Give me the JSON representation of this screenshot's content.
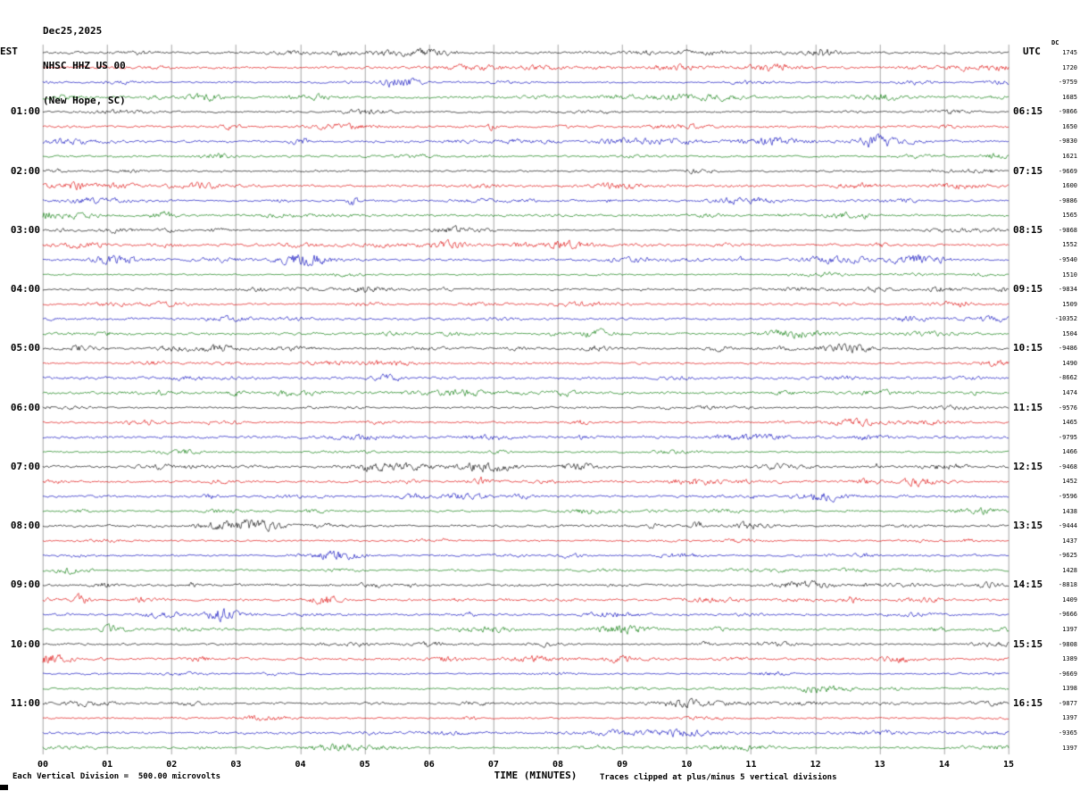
{
  "header": {
    "date": "Dec25,2025",
    "station": "NHSC HHZ US 00",
    "location": "(New Hope, SC)"
  },
  "footer": {
    "scale_text": "Each Vertical Division =  500.00 microvolts",
    "clip_text": "Traces clipped at plus/minus 5 vertical divisions"
  },
  "chart_data": {
    "type": "line",
    "variant": "helicorder-seismogram",
    "title": "NHSC HHZ US 00 (New Hope, SC) Dec25,2025",
    "left_axis_label": "EST",
    "right_axis_label": "UTC",
    "x_axis_label": "TIME (MINUTES)",
    "x_tick_labels": [
      "00",
      "01",
      "02",
      "03",
      "04",
      "05",
      "06",
      "07",
      "08",
      "09",
      "10",
      "11",
      "12",
      "13",
      "14",
      "15"
    ],
    "minutes_per_row": 15,
    "rows": 48,
    "rows_per_hour": 4,
    "left_hour_labels": [
      "01:00",
      "02:00",
      "03:00",
      "04:00",
      "05:00",
      "06:00",
      "07:00",
      "08:00",
      "09:00",
      "10:00",
      "11:00"
    ],
    "right_hour_labels": [
      "06:15",
      "07:15",
      "08:15",
      "09:15",
      "10:15",
      "11:15",
      "12:15",
      "13:15",
      "14:15",
      "15:15",
      "16:15"
    ],
    "trace_colors": [
      "#000000",
      "#dd0000",
      "#0000bb",
      "#007700"
    ],
    "dc_header": "DC",
    "dc_offsets": [
      1745,
      1720,
      -9759,
      1685,
      -9866,
      1650,
      -9830,
      1621,
      -9669,
      1600,
      -9886,
      1565,
      -9868,
      1552,
      -9540,
      1510,
      -9834,
      1509,
      -10352,
      1504,
      -9486,
      1490,
      -8662,
      1474,
      -9576,
      1465,
      -9795,
      1466,
      -9468,
      1452,
      -9596,
      1438,
      -9444,
      1437,
      -9625,
      1428,
      -8818,
      1409,
      -9666,
      1397,
      -9808,
      1389,
      -9669,
      1398,
      -9877,
      1397,
      -9365,
      1397
    ],
    "amplitude_scale": "500.00 microvolts per vertical division",
    "clip_note": "Traces clipped at plus/minus 5 vertical divisions",
    "waveform_description": "continuous low-amplitude background seismic noise on every 15-minute trace, occasional small bursts, no large events"
  }
}
